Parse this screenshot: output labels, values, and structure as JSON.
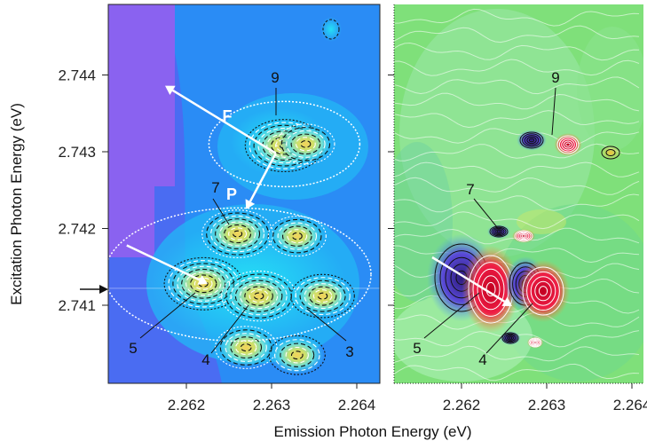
{
  "chart_data": {
    "type": "heatmap",
    "xlabel": "Emission Photon Energy (eV)",
    "ylabel": "Excitation Photon Energy (eV)",
    "x_ticks": [
      2.262,
      2.263,
      2.264
    ],
    "y_ticks": [
      2.741,
      2.742,
      2.743,
      2.744
    ],
    "x_tick_labels": [
      "2.262",
      "2.263",
      "2.264"
    ],
    "y_tick_labels": [
      "2.741",
      "2.742",
      "2.743",
      "2.744"
    ],
    "xlim": [
      2.2611,
      2.2645
    ],
    "ylim": [
      2.74,
      2.7447
    ],
    "marker_y": 2.74122,
    "panels": [
      {
        "name": "left",
        "peaks": [
          {
            "label": "9",
            "x": 2.26315,
            "y": 2.74308,
            "amp": 1.0
          },
          {
            "label": "7",
            "x": 2.2626,
            "y": 2.74193,
            "amp": 0.8
          },
          {
            "label": "5",
            "x": 2.2622,
            "y": 2.74128,
            "amp": 1.0
          },
          {
            "label": "4",
            "x": 2.26285,
            "y": 2.74112,
            "amp": 0.9
          },
          {
            "label": "3",
            "x": 2.2636,
            "y": 2.74112,
            "amp": 0.6
          },
          {
            "x": 2.2633,
            "y": 2.7419,
            "amp": 0.45
          },
          {
            "x": 2.2627,
            "y": 2.74045,
            "amp": 0.55
          },
          {
            "x": 2.2633,
            "y": 2.74035,
            "amp": 0.4
          },
          {
            "x": 2.2634,
            "y": 2.7431,
            "amp": 0.45
          }
        ],
        "arrows": [
          {
            "label": "F",
            "from": [
              2.2613,
              2.74178
            ],
            "to": [
              2.26225,
              2.74128
            ]
          },
          {
            "label": "F",
            "from": [
              2.26305,
              2.74298
            ],
            "to": [
              2.26175,
              2.74386
            ]
          },
          {
            "label": "P",
            "from": [
              2.26305,
              2.74298
            ],
            "to": [
              2.2627,
              2.74225
            ]
          }
        ]
      },
      {
        "name": "right",
        "peaks": [
          {
            "label": "9",
            "x": 2.26305,
            "y": 2.74285
          },
          {
            "label": "7",
            "x": 2.26245,
            "y": 2.74193
          },
          {
            "label": "5",
            "x": 2.26215,
            "y": 2.74125
          },
          {
            "label": "4",
            "x": 2.26295,
            "y": 2.7412
          }
        ]
      }
    ]
  }
}
